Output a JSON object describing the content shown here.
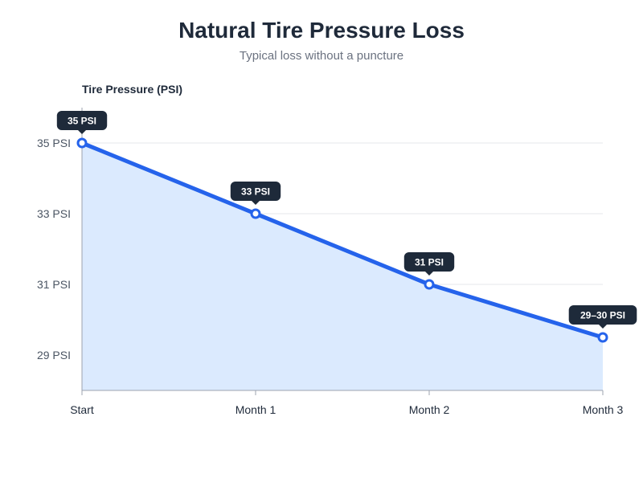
{
  "chart_data": {
    "type": "area",
    "title": "Natural Tire Pressure Loss",
    "subtitle": "Typical loss without a puncture",
    "ylabel": "Tire Pressure (PSI)",
    "xlabel": "",
    "categories": [
      "Start",
      "Month 1",
      "Month 2",
      "Month 3"
    ],
    "values": [
      35,
      33,
      31,
      29.5
    ],
    "data_labels": [
      "35 PSI",
      "33 PSI",
      "31 PSI",
      "29–30 PSI"
    ],
    "y_ticks": [
      {
        "value": 35,
        "label": "35 PSI"
      },
      {
        "value": 33,
        "label": "33 PSI"
      },
      {
        "value": 31,
        "label": "31 PSI"
      },
      {
        "value": 29,
        "label": "29 PSI"
      }
    ],
    "ylim": [
      28,
      36
    ],
    "grid": true,
    "legend": "none",
    "colors": {
      "line": "#2563eb",
      "fill": "#dbeafe",
      "callout": "#1e2a3a",
      "grid": "#e5e7eb",
      "axis": "#9ca3af"
    }
  }
}
